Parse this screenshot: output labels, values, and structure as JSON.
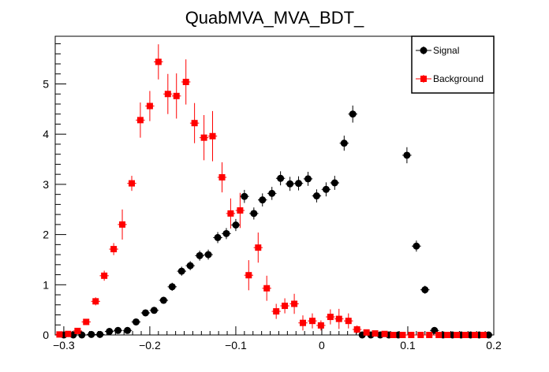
{
  "chart_data": {
    "type": "scatter",
    "title": "QuabMVA_MVA_BDT_",
    "xlabel": "",
    "ylabel": "",
    "xlim": [
      -0.31,
      0.2
    ],
    "ylim": [
      0,
      5.95
    ],
    "xticks": [
      -0.3,
      -0.2,
      -0.1,
      0,
      0.1,
      0.2
    ],
    "xtick_labels": [
      "−0.3",
      "−0.2",
      "−0.1",
      "0",
      "0.1",
      "0.2"
    ],
    "yticks": [
      0,
      1,
      2,
      3,
      4,
      5
    ],
    "ytick_labels": [
      "0",
      "1",
      "2",
      "3",
      "4",
      "5"
    ],
    "grid": false,
    "legend": "top-right",
    "series": [
      {
        "name": "Signal",
        "color": "#000000",
        "marker": "circle",
        "x": [
          -0.3,
          -0.289,
          -0.279,
          -0.268,
          -0.258,
          -0.247,
          -0.237,
          -0.226,
          -0.216,
          -0.205,
          -0.195,
          -0.184,
          -0.174,
          -0.163,
          -0.153,
          -0.142,
          -0.132,
          -0.121,
          -0.111,
          -0.1,
          -0.09,
          -0.079,
          -0.069,
          -0.058,
          -0.048,
          -0.037,
          -0.027,
          -0.016,
          -0.006,
          0.005,
          0.015,
          0.026,
          0.036,
          0.047,
          0.057,
          0.068,
          0.078,
          0.089,
          0.099,
          0.11,
          0.12,
          0.131,
          0.141,
          0.152,
          0.162,
          0.173,
          0.183,
          0.194
        ],
        "y": [
          0,
          0,
          0,
          0.01,
          0.01,
          0.07,
          0.09,
          0.09,
          0.26,
          0.44,
          0.49,
          0.69,
          0.96,
          1.27,
          1.38,
          1.58,
          1.6,
          1.94,
          2.02,
          2.19,
          2.76,
          2.42,
          2.69,
          2.82,
          3.12,
          3.01,
          3.02,
          3.11,
          2.77,
          2.9,
          3.03,
          3.82,
          4.4,
          0,
          0,
          0,
          0,
          0,
          3.58,
          1.77,
          0.9,
          0.09,
          0,
          0,
          0,
          0,
          0,
          0
        ],
        "err": [
          0,
          0,
          0,
          0.01,
          0.01,
          0.03,
          0.03,
          0.03,
          0.05,
          0.06,
          0.06,
          0.07,
          0.08,
          0.09,
          0.09,
          0.1,
          0.1,
          0.11,
          0.11,
          0.12,
          0.13,
          0.12,
          0.13,
          0.13,
          0.14,
          0.14,
          0.14,
          0.14,
          0.13,
          0.14,
          0.14,
          0.15,
          0.17,
          0,
          0,
          0,
          0,
          0,
          0.16,
          0.11,
          0.08,
          0.03,
          0,
          0,
          0,
          0,
          0,
          0
        ]
      },
      {
        "name": "Background",
        "color": "#ff0000",
        "marker": "square",
        "x": [
          -0.305,
          -0.295,
          -0.284,
          -0.274,
          -0.263,
          -0.253,
          -0.242,
          -0.232,
          -0.221,
          -0.211,
          -0.2,
          -0.19,
          -0.179,
          -0.169,
          -0.158,
          -0.148,
          -0.137,
          -0.127,
          -0.116,
          -0.106,
          -0.095,
          -0.085,
          -0.074,
          -0.064,
          -0.053,
          -0.043,
          -0.032,
          -0.022,
          -0.011,
          -0.001,
          0.01,
          0.02,
          0.031,
          0.041,
          0.052,
          0.062,
          0.073,
          0.083,
          0.094,
          0.104,
          0.115,
          0.125,
          0.136,
          0.146,
          0.157,
          0.167,
          0.178,
          0.188
        ],
        "y": [
          0.01,
          0.02,
          0.08,
          0.26,
          0.67,
          1.18,
          1.71,
          2.2,
          3.02,
          4.28,
          4.56,
          5.44,
          4.8,
          4.76,
          5.04,
          4.22,
          3.93,
          3.96,
          3.14,
          2.42,
          2.48,
          1.19,
          1.74,
          0.93,
          0.47,
          0.58,
          0.62,
          0.24,
          0.28,
          0.19,
          0.36,
          0.32,
          0.28,
          0.11,
          0.05,
          0.03,
          0.02,
          0,
          0,
          0,
          0,
          0,
          0,
          0,
          0,
          0,
          0,
          0
        ],
        "err": [
          0.01,
          0.02,
          0.04,
          0.06,
          0.08,
          0.1,
          0.12,
          0.3,
          0.15,
          0.35,
          0.3,
          0.35,
          0.4,
          0.45,
          0.45,
          0.4,
          0.45,
          0.5,
          0.3,
          0.3,
          0.35,
          0.3,
          0.3,
          0.25,
          0.15,
          0.15,
          0.2,
          0.15,
          0.15,
          0.1,
          0.15,
          0.2,
          0.15,
          0.08,
          0.05,
          0.03,
          0.02,
          0,
          0,
          0,
          0,
          0,
          0,
          0,
          0,
          0,
          0,
          0
        ]
      }
    ]
  }
}
